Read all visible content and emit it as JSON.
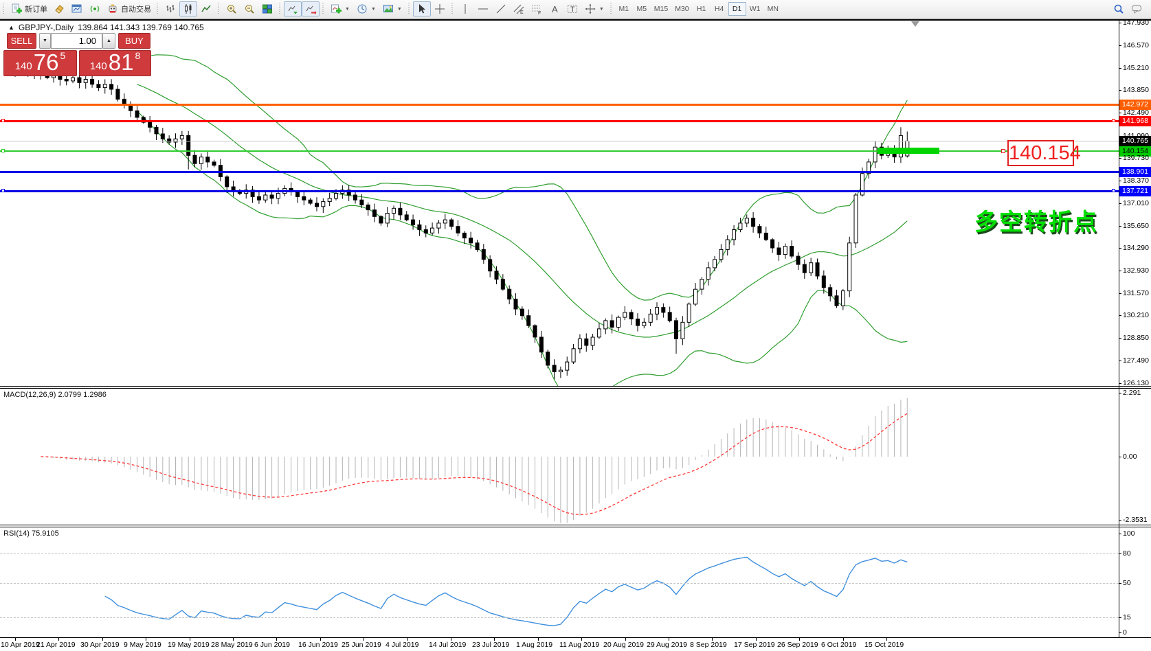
{
  "toolbar": {
    "new_order_label": "新订单",
    "autotrading_label": "自动交易",
    "timeframes": [
      "M1",
      "M5",
      "M15",
      "M30",
      "H1",
      "H4",
      "D1",
      "W1",
      "MN"
    ],
    "active_timeframe": "D1"
  },
  "chart": {
    "symbol_title": "GBPJPY-,Daily",
    "ohlc_title": "139.864 141.343 139.769 140.765",
    "annotation": "多空转折点",
    "callout_price": "140.154"
  },
  "trade_panel": {
    "sell_label": "SELL",
    "buy_label": "BUY",
    "volume": "1.00",
    "sell_small": "140",
    "sell_big": "76",
    "sell_sup": "5",
    "buy_small": "140",
    "buy_big": "81",
    "buy_sup": "8"
  },
  "macd": {
    "name": "MACD(12,26,9)",
    "values": "2.0799 1.2986",
    "axis": [
      "2.291",
      "0.00",
      "-2.3531"
    ]
  },
  "rsi": {
    "name": "RSI(14)",
    "value": "75.9105",
    "axis": [
      "100",
      "80",
      "50",
      "15",
      "0"
    ],
    "dashed_levels": [
      80,
      50,
      15
    ]
  },
  "chart_data": {
    "type": "candlestick",
    "symbol": "GBPJPY-",
    "timeframe": "Daily",
    "title": "GBPJPY-,Daily 139.864 141.343 139.769 140.765",
    "y_axis_ticks": [
      "147.930",
      "146.570",
      "145.210",
      "143.850",
      "142.490",
      "141.090",
      "139.730",
      "138.370",
      "137.010",
      "135.650",
      "134.290",
      "132.930",
      "131.570",
      "130.210",
      "128.850",
      "127.490",
      "126.130"
    ],
    "x_axis_dates": [
      "10 Apr 2019",
      "21 Apr 2019",
      "30 Apr 2019",
      "9 May 2019",
      "19 May 2019",
      "28 May 2019",
      "6 Jun 2019",
      "16 Jun 2019",
      "25 Jun 2019",
      "4 Jul 2019",
      "14 Jul 2019",
      "23 Jul 2019",
      "1 Aug 2019",
      "11 Aug 2019",
      "20 Aug 2019",
      "29 Aug 2019",
      "8 Sep 2019",
      "17 Sep 2019",
      "26 Sep 2019",
      "6 Oct 2019",
      "15 Oct 2019"
    ],
    "closes": [
      145.0,
      145.2,
      144.9,
      145.1,
      144.8,
      144.6,
      144.7,
      144.5,
      144.4,
      144.6,
      144.3,
      144.5,
      144.2,
      144.0,
      144.2,
      143.9,
      143.3,
      143.0,
      142.6,
      142.2,
      141.9,
      141.6,
      141.2,
      140.9,
      140.7,
      140.9,
      141.1,
      139.9,
      139.4,
      139.8,
      139.5,
      139.3,
      138.6,
      138.0,
      137.7,
      137.6,
      137.8,
      137.4,
      137.2,
      137.5,
      137.3,
      137.6,
      137.9,
      137.7,
      137.4,
      137.2,
      137.0,
      136.8,
      137.1,
      137.3,
      137.6,
      137.8,
      137.5,
      137.2,
      136.9,
      136.6,
      136.2,
      135.8,
      136.4,
      136.7,
      136.3,
      136.0,
      135.7,
      135.4,
      135.2,
      135.5,
      135.8,
      136.0,
      135.6,
      135.2,
      134.9,
      134.6,
      134.2,
      133.6,
      132.9,
      132.4,
      131.8,
      131.2,
      130.6,
      130.2,
      129.6,
      128.9,
      128.0,
      127.2,
      126.8,
      126.9,
      127.4,
      128.2,
      128.8,
      128.4,
      128.9,
      129.4,
      129.9,
      129.5,
      130.1,
      130.4,
      130.0,
      129.6,
      129.8,
      130.3,
      130.7,
      130.4,
      129.9,
      128.8,
      129.8,
      130.9,
      131.8,
      132.4,
      133.1,
      133.6,
      134.2,
      134.8,
      135.4,
      135.8,
      136.1,
      135.6,
      135.2,
      134.8,
      134.3,
      133.9,
      134.4,
      133.8,
      133.3,
      132.8,
      133.4,
      132.6,
      131.9,
      131.4,
      130.8,
      131.7,
      134.6,
      137.5,
      138.8,
      139.5,
      140.4,
      139.9,
      140.2,
      139.8,
      141.1,
      140.765
    ],
    "last_bar": {
      "open": 139.864,
      "high": 141.343,
      "low": 139.769,
      "close": 140.765
    },
    "wick_low_overrides": {
      "27": 139.05,
      "84": 126.35,
      "103": 127.9
    },
    "wick_high_overrides": {
      "138": 141.6
    },
    "indicators": [
      {
        "name": "Bollinger Bands",
        "period": 20,
        "deviation": 2,
        "color": "#2f9e2f"
      },
      {
        "name": "MACD",
        "fast": 12,
        "slow": 26,
        "signal": 9,
        "macd_value": 2.0799,
        "signal_value": 1.2986
      },
      {
        "name": "RSI",
        "period": 14,
        "value": 75.9105
      }
    ],
    "levels": [
      {
        "name": "resistance-upper",
        "price": 142.972,
        "label": "142.972",
        "color": "#ff5e00",
        "tag_bg": "#ff5e00",
        "tag_fg": "#ffffff",
        "thickness": 3,
        "left_marker": false,
        "right_marker": false
      },
      {
        "name": "resistance-main",
        "price": 141.968,
        "label": "141.968",
        "color": "#ff0000",
        "tag_bg": "#ff0000",
        "tag_fg": "#ffffff",
        "thickness": 3,
        "left_marker": true,
        "right_marker": true
      },
      {
        "name": "current-price",
        "price": 140.765,
        "label": "140.765",
        "color": "#c8c8c8",
        "tag_bg": "#000000",
        "tag_fg": "#ffffff",
        "thickness": 1,
        "left_marker": false,
        "right_marker": false
      },
      {
        "name": "pivot-line",
        "price": 140.154,
        "label": "140.154",
        "color": "#2ecc2e",
        "tag_bg": "#00cc00",
        "tag_fg": "#000000",
        "thickness": 2,
        "left_marker": true,
        "right_marker": false
      },
      {
        "name": "support-1",
        "price": 138.901,
        "label": "138.901",
        "color": "#0000e6",
        "tag_bg": "#0000ff",
        "tag_fg": "#ffffff",
        "thickness": 3,
        "left_marker": false,
        "right_marker": false
      },
      {
        "name": "support-2",
        "price": 137.721,
        "label": "137.721",
        "color": "#0000e6",
        "tag_bg": "#0000ff",
        "tag_fg": "#ffffff",
        "thickness": 3,
        "left_marker": true,
        "right_marker": true
      }
    ]
  }
}
